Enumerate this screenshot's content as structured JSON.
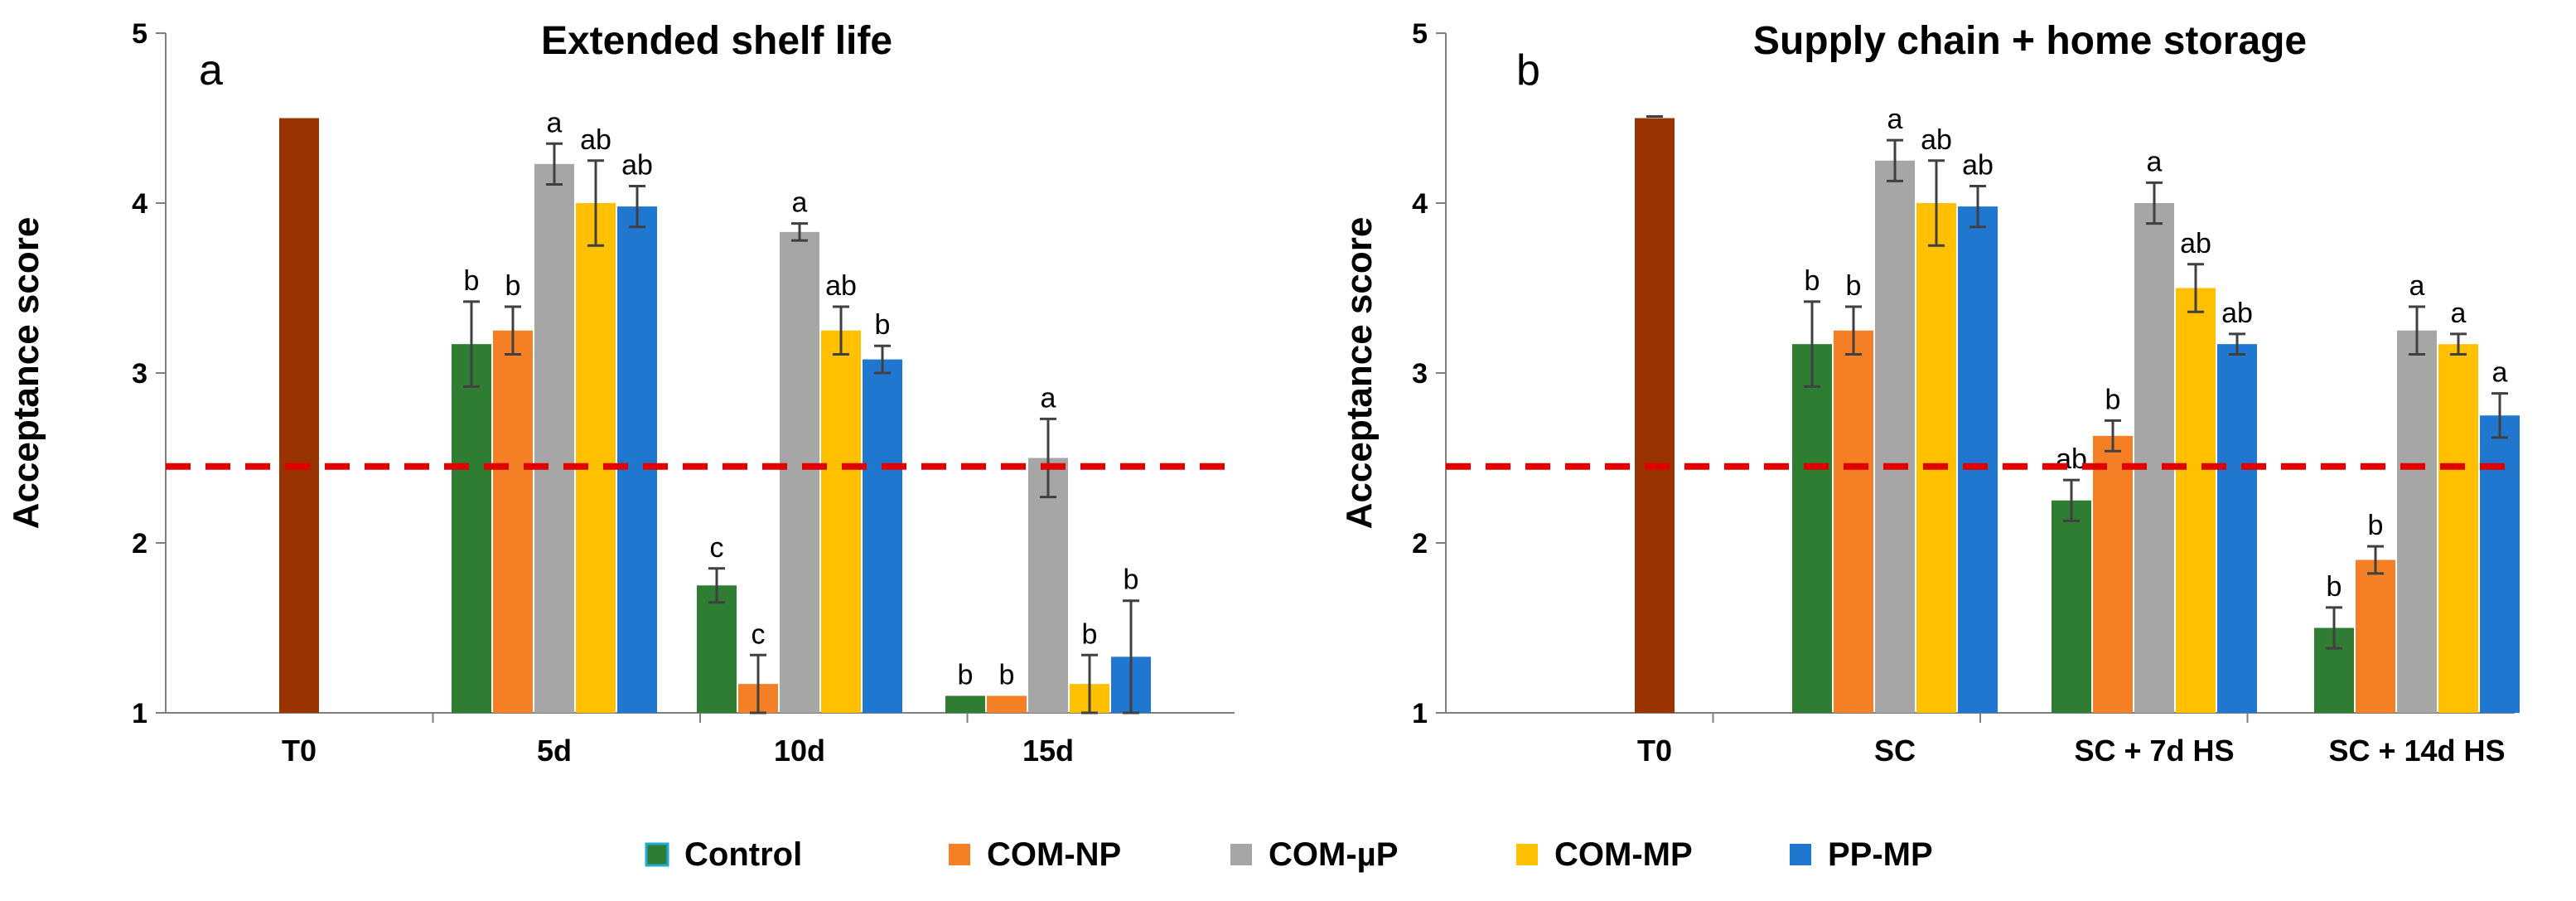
{
  "colors": {
    "T0": "#993300",
    "Control": "#2E7D32",
    "COM-NP": "#F47F24",
    "COM-µP": "#A6A6A6",
    "COM-MP": "#FFC000",
    "PP-MP": "#1F77D0",
    "threshold": "#E00000",
    "legend_border_control": "#23A9D6"
  },
  "legend": {
    "items": [
      "Control",
      "COM-NP",
      "COM-µP",
      "COM-MP",
      "PP-MP"
    ]
  },
  "chart_data": [
    {
      "type": "bar",
      "panel": "a",
      "title": "Extended shelf life",
      "xlabel": "",
      "ylabel": "Acceptance score",
      "ylim": [
        1,
        5
      ],
      "yticks": [
        "1",
        "2",
        "3",
        "4",
        "5"
      ],
      "threshold": 2.45,
      "categories": [
        "T0",
        "5d",
        "10d",
        "15d"
      ],
      "t0": {
        "value": 4.5,
        "error": 0
      },
      "series": [
        {
          "name": "Control",
          "values": [
            null,
            3.17,
            1.75,
            1.1
          ],
          "errors": [
            null,
            0.25,
            0.1,
            0
          ],
          "labels": [
            null,
            "b",
            "c",
            "b"
          ]
        },
        {
          "name": "COM-NP",
          "values": [
            null,
            3.25,
            1.17,
            1.1
          ],
          "errors": [
            null,
            0.14,
            0.17,
            0
          ],
          "labels": [
            null,
            "b",
            "c",
            "b"
          ]
        },
        {
          "name": "COM-µP",
          "values": [
            null,
            4.23,
            3.83,
            2.5
          ],
          "errors": [
            null,
            0.12,
            0.05,
            0.23
          ],
          "labels": [
            null,
            "a",
            "a",
            "a"
          ]
        },
        {
          "name": "COM-MP",
          "values": [
            null,
            4.0,
            3.25,
            1.17
          ],
          "errors": [
            null,
            0.25,
            0.14,
            0.17
          ],
          "labels": [
            null,
            "ab",
            "ab",
            "b"
          ]
        },
        {
          "name": "PP-MP",
          "values": [
            null,
            3.98,
            3.08,
            1.33
          ],
          "errors": [
            null,
            0.12,
            0.08,
            0.33
          ],
          "labels": [
            null,
            "ab",
            "b",
            "b"
          ]
        }
      ]
    },
    {
      "type": "bar",
      "panel": "b",
      "title": "Supply chain + home storage",
      "xlabel": "",
      "ylabel": "Acceptance score",
      "ylim": [
        1,
        5
      ],
      "yticks": [
        "1",
        "2",
        "3",
        "4",
        "5"
      ],
      "threshold": 2.45,
      "categories": [
        "T0",
        "SC",
        "SC + 7d HS",
        "SC + 14d HS"
      ],
      "t0": {
        "value": 4.5,
        "error": 0.01
      },
      "series": [
        {
          "name": "Control",
          "values": [
            null,
            3.17,
            2.25,
            1.5
          ],
          "errors": [
            null,
            0.25,
            0.12,
            0.12
          ],
          "labels": [
            null,
            "b",
            "ab",
            "b"
          ]
        },
        {
          "name": "COM-NP",
          "values": [
            null,
            3.25,
            2.63,
            1.9
          ],
          "errors": [
            null,
            0.14,
            0.09,
            0.08
          ],
          "labels": [
            null,
            "b",
            "b",
            "b"
          ]
        },
        {
          "name": "COM-µP",
          "values": [
            null,
            4.25,
            4.0,
            3.25
          ],
          "errors": [
            null,
            0.12,
            0.12,
            0.14
          ],
          "labels": [
            null,
            "a",
            "a",
            "a"
          ]
        },
        {
          "name": "COM-MP",
          "values": [
            null,
            4.0,
            3.5,
            3.17
          ],
          "errors": [
            null,
            0.25,
            0.14,
            0.06
          ],
          "labels": [
            null,
            "ab",
            "ab",
            "a"
          ]
        },
        {
          "name": "PP-MP",
          "values": [
            null,
            3.98,
            3.17,
            2.75
          ],
          "errors": [
            null,
            0.12,
            0.06,
            0.13
          ],
          "labels": [
            null,
            "ab",
            "ab",
            "a"
          ]
        }
      ]
    }
  ]
}
